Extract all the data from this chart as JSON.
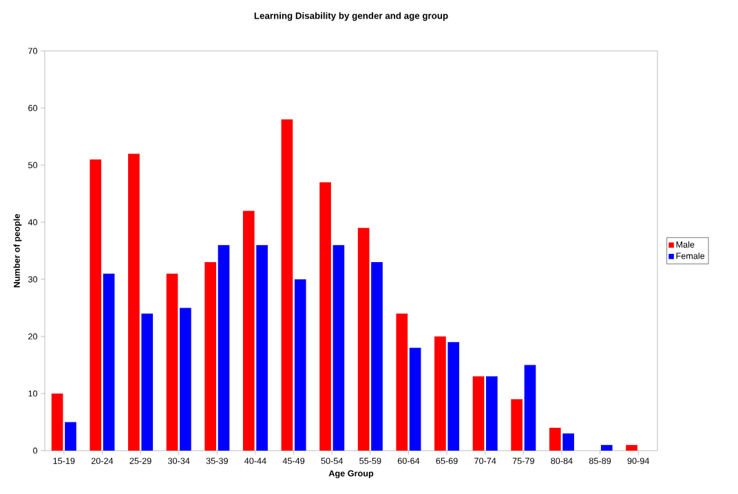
{
  "chart_data": {
    "type": "bar",
    "title": "Learning Disability by gender and age group",
    "xlabel": "Age Group",
    "ylabel": "Number of people",
    "categories": [
      "15-19",
      "20-24",
      "25-29",
      "30-34",
      "35-39",
      "40-44",
      "45-49",
      "50-54",
      "55-59",
      "60-64",
      "65-69",
      "70-74",
      "75-79",
      "80-84",
      "85-89",
      "90-94"
    ],
    "series": [
      {
        "name": "Male",
        "color": "#ff0000",
        "values": [
          10,
          51,
          52,
          31,
          33,
          42,
          58,
          47,
          39,
          24,
          20,
          13,
          9,
          4,
          0,
          1
        ]
      },
      {
        "name": "Female",
        "color": "#0000ff",
        "values": [
          5,
          31,
          24,
          25,
          36,
          36,
          30,
          36,
          33,
          18,
          19,
          13,
          15,
          3,
          1,
          0
        ]
      }
    ],
    "ylim": [
      0,
      70
    ],
    "yticks": [
      0,
      10,
      20,
      30,
      40,
      50,
      60,
      70
    ],
    "grid": false,
    "legend": "right"
  }
}
